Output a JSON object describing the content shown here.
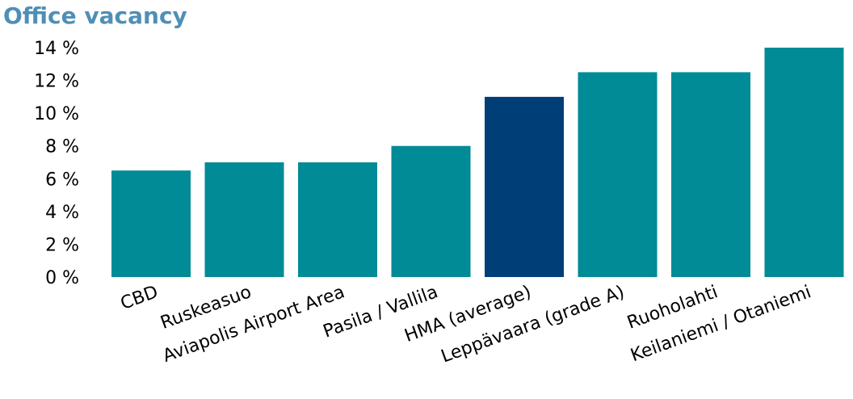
{
  "chart_data": {
    "type": "bar",
    "title": "Office vacancy",
    "xlabel": "",
    "ylabel": "",
    "categories": [
      "CBD",
      "Ruskeasuo",
      "Aviapolis Airport Area",
      "Pasila / Vallila",
      "HMA (average)",
      "Leppävaara (grade A)",
      "Ruoholahti",
      "Keilaniemi / Otaniemi"
    ],
    "values": [
      6.5,
      7.0,
      7.0,
      8.0,
      11.0,
      12.5,
      12.5,
      14.0
    ],
    "ylim": [
      0,
      14
    ],
    "yticks": [
      0,
      2,
      4,
      6,
      8,
      10,
      12,
      14
    ],
    "ytick_labels": [
      "0 %",
      "2 %",
      "4 %",
      "6 %",
      "8 %",
      "10 %",
      "12 %",
      "14 %"
    ],
    "grid": false,
    "legend": "none",
    "colors": {
      "default": "#008b96",
      "highlight": "#003e78",
      "title": "#4f8fb5"
    },
    "highlight_category": "HMA (average)"
  }
}
